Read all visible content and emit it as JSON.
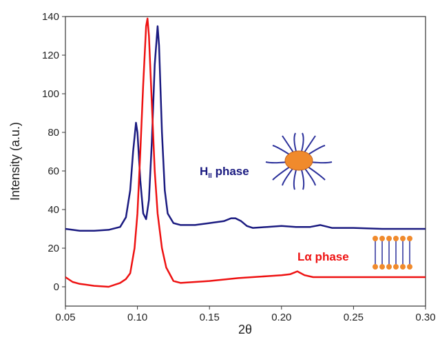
{
  "chart_data": {
    "type": "line",
    "xlabel": "2θ",
    "ylabel": "Intensity (a.u.)",
    "xlim": [
      0.05,
      0.3
    ],
    "ylim": [
      -10,
      140
    ],
    "xticks": [
      0.05,
      {
        "value": 0.1,
        "label": "0.10"
      },
      0.15,
      {
        "value": 0.2,
        "label": "0.20"
      },
      0.25,
      {
        "value": 0.3,
        "label": "0.30"
      }
    ],
    "yticks": [
      0,
      20,
      40,
      60,
      80,
      100,
      120,
      140
    ],
    "series": [
      {
        "label": {
          "main": "H",
          "sub": "II",
          "tail": " phase"
        },
        "color": "#1a1a80",
        "x": [
          0.05,
          0.06,
          0.07,
          0.08,
          0.088,
          0.092,
          0.095,
          0.097,
          0.099,
          0.1,
          0.102,
          0.104,
          0.106,
          0.108,
          0.11,
          0.112,
          0.114,
          0.115,
          0.117,
          0.119,
          0.121,
          0.125,
          0.13,
          0.14,
          0.15,
          0.16,
          0.165,
          0.168,
          0.172,
          0.176,
          0.18,
          0.19,
          0.2,
          0.21,
          0.22,
          0.227,
          0.235,
          0.25,
          0.27,
          0.3
        ],
        "values": [
          30,
          29,
          29,
          29.5,
          31,
          36,
          50,
          70,
          85,
          80,
          55,
          38,
          35,
          45,
          75,
          115,
          135,
          125,
          80,
          50,
          38,
          33,
          32,
          32,
          33,
          34,
          35.5,
          35.5,
          34,
          31.5,
          30.5,
          31,
          31.5,
          31,
          31,
          32,
          30.5,
          30.5,
          30,
          30
        ]
      },
      {
        "label": {
          "main": "Lα phase"
        },
        "color": "#ee1111",
        "x": [
          0.05,
          0.055,
          0.06,
          0.07,
          0.08,
          0.088,
          0.092,
          0.095,
          0.098,
          0.1,
          0.102,
          0.104,
          0.106,
          0.107,
          0.108,
          0.11,
          0.112,
          0.114,
          0.117,
          0.12,
          0.125,
          0.13,
          0.15,
          0.17,
          0.19,
          0.2,
          0.206,
          0.211,
          0.216,
          0.222,
          0.24,
          0.27,
          0.3
        ],
        "values": [
          5,
          2.5,
          1.5,
          0.5,
          0,
          2,
          4,
          7,
          20,
          38,
          70,
          105,
          135,
          139,
          130,
          95,
          60,
          38,
          20,
          10,
          3,
          2,
          3,
          4.5,
          5.5,
          6,
          6.5,
          8,
          6,
          5,
          5,
          5,
          5
        ]
      }
    ]
  }
}
